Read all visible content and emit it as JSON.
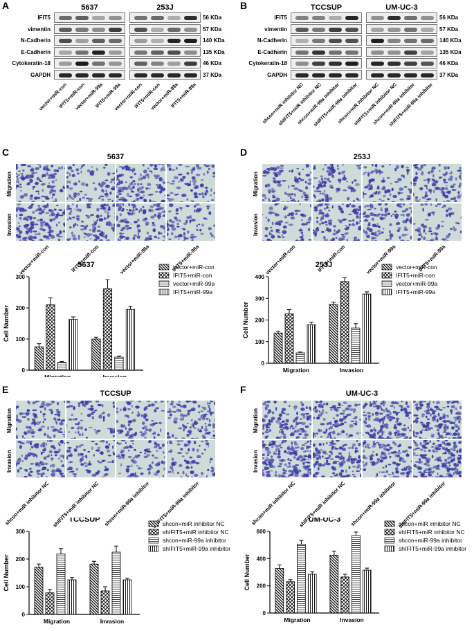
{
  "panel_letters": [
    "A",
    "B",
    "C",
    "D",
    "E",
    "F"
  ],
  "colors": {
    "band": "#1a1a1a",
    "blot_bg": "#eeeeee",
    "stain": "#3d3ea8",
    "micro_bg": "#cfdbd8"
  },
  "panelA": {
    "groups": [
      "5637",
      "253J"
    ],
    "rows": [
      "IFIT5",
      "vimentin",
      "N-Cadherin",
      "E-Cadherin",
      "Cytokeratin-18",
      "GAPDH"
    ],
    "kda": [
      "56 KDa",
      "57 KDa",
      "140 KDa",
      "135 KDa",
      "46 KDa",
      "37 KDa"
    ],
    "lanes": [
      "vector+miR-con",
      "IFIT5+miR-con",
      "vector+miR-99a",
      "IFIT5+miR-99a",
      "vector+miR-con",
      "IFIT5+miR-con",
      "vector+miR-99a",
      "IFIT5+miR-99a"
    ]
  },
  "panelB": {
    "groups": [
      "TCCSUP",
      "UM-UC-3"
    ],
    "rows": [
      "IFIT5",
      "vimentin",
      "N-Cadherin",
      "E-Cadherin",
      "Cytokeratin-18",
      "GAPDH"
    ],
    "kda": [
      "56 KDa",
      "57 KDa",
      "140 KDa",
      "135 KDa",
      "46 KDa",
      "37 KDa"
    ],
    "lanes": [
      "shcon+miR inhibitor NC",
      "shIFIT5+miR inhibitor NC",
      "shcon+miR-99a inhibitor",
      "shIFIT5+miR-99a inhibitor",
      "shcon+miR inhibitor NC",
      "shIFIT5+miR inhibitor NC",
      "shcon+miR-99a inhibitor",
      "shIFIT5+miR-99a inhibitor"
    ]
  },
  "panelC": {
    "title": "5637",
    "row_labels": [
      "Migration",
      "Invasion"
    ],
    "cols": [
      "vector+miR-con",
      "IFIT5+miR-con",
      "vector+miR-99a",
      "IFIT5+miR-99a"
    ]
  },
  "panelD": {
    "title": "253J",
    "row_labels": [
      "Migration",
      "Invasion"
    ],
    "cols": [
      "vector+miR-con",
      "IFIT5+miR-con",
      "vector+miR-99a",
      "IFIT5+miR-99a"
    ]
  },
  "panelE": {
    "title": "TCCSUP",
    "row_labels": [
      "Migration",
      "Invasion"
    ],
    "cols": [
      "shcon+miR inhibitor NC",
      "shIFIT5+miR inhibitor NC",
      "shcon+miR-99a inhibitor",
      "shIFIT5+miR-99a inhibitor"
    ]
  },
  "panelF": {
    "title": "UM-UC-3",
    "row_labels": [
      "Migration",
      "Invasion"
    ],
    "cols": [
      "shcon+miR inhibitor NC",
      "shIFIT5+miR inhibitor NC",
      "shcon+miR-99a inhibitor",
      "shIFIT5+miR-99a inhibitor"
    ]
  },
  "chart_data": [
    {
      "id": "c1",
      "type": "bar",
      "title": "5637",
      "ylabel": "Cell Number",
      "ylim": [
        0,
        300
      ],
      "yticks": [
        0,
        100,
        200,
        300
      ],
      "categories": [
        "Migration",
        "Invasion"
      ],
      "series": [
        {
          "name": "vector+miR-con",
          "values": [
            75,
            100
          ],
          "errors": [
            10,
            6
          ]
        },
        {
          "name": "IFIT5+miR-con",
          "values": [
            210,
            262
          ],
          "errors": [
            22,
            28
          ]
        },
        {
          "name": "vector+miR-99a",
          "values": [
            25,
            42
          ],
          "errors": [
            3,
            3
          ]
        },
        {
          "name": "IFIT5+miR-99a",
          "values": [
            163,
            195
          ],
          "errors": [
            8,
            10
          ]
        }
      ]
    },
    {
      "id": "c2",
      "type": "bar",
      "title": "253J",
      "ylabel": "Cell Number",
      "ylim": [
        0,
        400
      ],
      "yticks": [
        0,
        100,
        200,
        300,
        400
      ],
      "categories": [
        "Migration",
        "Invasion"
      ],
      "series": [
        {
          "name": "vector+miR-con",
          "values": [
            140,
            272
          ],
          "errors": [
            8,
            10
          ]
        },
        {
          "name": "IFIT5+miR-con",
          "values": [
            228,
            378
          ],
          "errors": [
            20,
            18
          ]
        },
        {
          "name": "vector+miR-99a",
          "values": [
            48,
            163
          ],
          "errors": [
            4,
            20
          ]
        },
        {
          "name": "IFIT5+miR-99a",
          "values": [
            178,
            320
          ],
          "errors": [
            12,
            10
          ]
        }
      ]
    },
    {
      "id": "c3",
      "type": "bar",
      "title": "TCCSUP",
      "ylabel": "Cell Number",
      "ylim": [
        0,
        300
      ],
      "yticks": [
        0,
        100,
        200,
        300
      ],
      "categories": [
        "Migration",
        "Invasion"
      ],
      "series": [
        {
          "name": "shcon+miR inhibitor NC",
          "values": [
            170,
            182
          ],
          "errors": [
            12,
            10
          ]
        },
        {
          "name": "shIFIT5+miR inhibitor NC",
          "values": [
            78,
            85
          ],
          "errors": [
            12,
            15
          ]
        },
        {
          "name": "shcon+miR-99a inhibitor",
          "values": [
            218,
            225
          ],
          "errors": [
            20,
            22
          ]
        },
        {
          "name": "shIFIT5+miR-99a inhibitor",
          "values": [
            125,
            125
          ],
          "errors": [
            8,
            6
          ]
        }
      ]
    },
    {
      "id": "c4",
      "type": "bar",
      "title": "UM-UC-3",
      "ylabel": "Cell Number",
      "ylim": [
        0,
        600
      ],
      "yticks": [
        0,
        200,
        400,
        600
      ],
      "categories": [
        "Migration",
        "Invasion"
      ],
      "series": [
        {
          "name": "shcon+miR inhibitor NC",
          "values": [
            328,
            425
          ],
          "errors": [
            25,
            30
          ]
        },
        {
          "name": "shIFIT5+miR inhibitor NC",
          "values": [
            230,
            265
          ],
          "errors": [
            15,
            20
          ]
        },
        {
          "name": "shcon+miR-99a inhibitor",
          "values": [
            505,
            570
          ],
          "errors": [
            28,
            25
          ]
        },
        {
          "name": "shIFIT5+miR-99a inhibitor",
          "values": [
            285,
            315
          ],
          "errors": [
            18,
            15
          ]
        }
      ]
    }
  ]
}
